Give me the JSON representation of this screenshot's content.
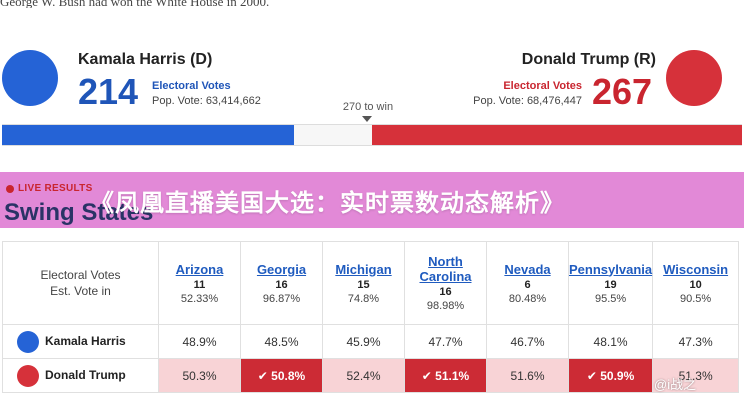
{
  "top_text": "George W. Bush had won the White House in 2000.",
  "colors": {
    "harris_blue": "#2563d6",
    "trump_red": "#d6313a",
    "banner_pink": "#e289d7",
    "win_cell": "#cc2b35",
    "lead_cell": "#f8d3d6"
  },
  "harris": {
    "name": "Kamala Harris (D)",
    "electoral_votes": "214",
    "ev_label": "Electoral Votes",
    "pop_vote": "Pop. Vote: 63,414,662",
    "ev_share": 0.395
  },
  "trump": {
    "name": "Donald Trump (R)",
    "electoral_votes": "267",
    "ev_label": "Electoral Votes",
    "pop_vote": "Pop. Vote: 68,476,447",
    "ev_share": 0.5
  },
  "to_win": "270 to win",
  "banner": {
    "live_label": "LIVE RESULTS",
    "section_title": "Swing States",
    "headline": "《凤凰直播美国大选：实时票数动态解析》"
  },
  "table": {
    "row_label_line1": "Electoral Votes",
    "row_label_line2": "Est. Vote in",
    "states": [
      {
        "name": "Arizona",
        "ev": "11",
        "est": "52.33%"
      },
      {
        "name": "Georgia",
        "ev": "16",
        "est": "96.87%"
      },
      {
        "name": "Michigan",
        "ev": "15",
        "est": "74.8%"
      },
      {
        "name": "North Carolina",
        "ev": "16",
        "est": "98.98%"
      },
      {
        "name": "Nevada",
        "ev": "6",
        "est": "80.48%"
      },
      {
        "name": "Pennsylvania",
        "ev": "19",
        "est": "95.5%"
      },
      {
        "name": "Wisconsin",
        "ev": "10",
        "est": "90.5%"
      }
    ],
    "harris_row": {
      "name": "Kamala Harris",
      "values": [
        "48.9%",
        "48.5%",
        "45.9%",
        "47.7%",
        "46.7%",
        "48.1%",
        "47.3%"
      ]
    },
    "trump_row": {
      "name": "Donald Trump",
      "values": [
        "50.3%",
        "✔ 50.8%",
        "52.4%",
        "✔ 51.1%",
        "51.6%",
        "✔ 50.9%",
        "51.3%"
      ],
      "wins": [
        false,
        true,
        false,
        true,
        false,
        true,
        false
      ]
    }
  },
  "watermark": "@i战之"
}
